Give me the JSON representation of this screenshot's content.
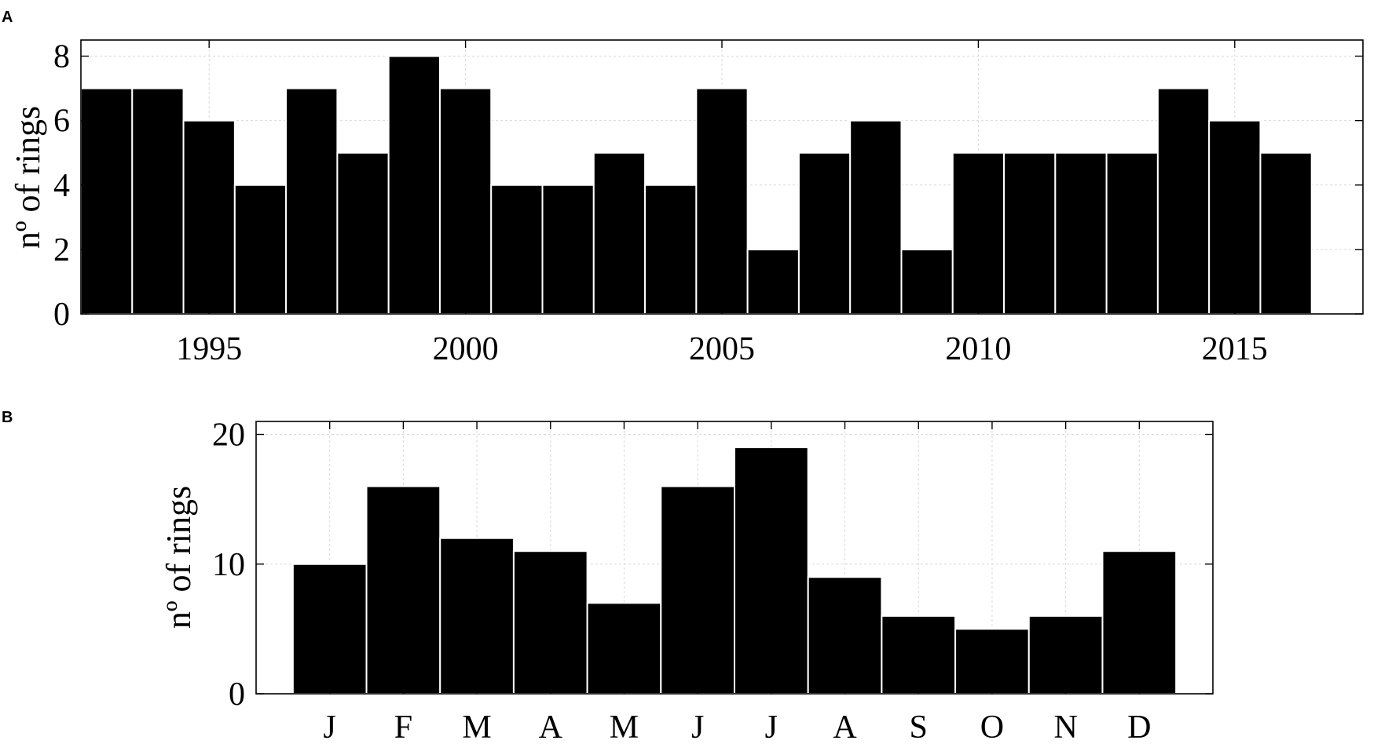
{
  "chart_data": [
    {
      "panel": "A",
      "type": "bar",
      "xlabel": "",
      "ylabel": "nº of rings",
      "x": [
        1993,
        1994,
        1995,
        1996,
        1997,
        1998,
        1999,
        2000,
        2001,
        2002,
        2003,
        2004,
        2005,
        2006,
        2007,
        2008,
        2009,
        2010,
        2011,
        2012,
        2013,
        2014,
        2015,
        2016
      ],
      "values": [
        7,
        7,
        6,
        4,
        7,
        5,
        8,
        7,
        4,
        4,
        5,
        4,
        7,
        2,
        5,
        6,
        2,
        5,
        5,
        5,
        5,
        7,
        6,
        5
      ],
      "xlim": [
        1992.5,
        2017.5
      ],
      "ylim": [
        0,
        8.5
      ],
      "xticks": [
        1995,
        2000,
        2005,
        2010,
        2015
      ],
      "yticks": [
        0,
        2,
        4,
        6,
        8
      ],
      "grid": true,
      "bar_color": "#000000"
    },
    {
      "panel": "B",
      "type": "bar",
      "xlabel": "",
      "ylabel": "nº of rings",
      "categories": [
        "J",
        "F",
        "M",
        "A",
        "M",
        "J",
        "J",
        "A",
        "S",
        "O",
        "N",
        "D"
      ],
      "values": [
        10,
        16,
        12,
        11,
        7,
        16,
        19,
        9,
        6,
        5,
        6,
        11
      ],
      "xlim": [
        0,
        13
      ],
      "ylim": [
        0,
        21
      ],
      "yticks": [
        0,
        10,
        20
      ],
      "grid": true,
      "bar_color": "#000000"
    }
  ]
}
